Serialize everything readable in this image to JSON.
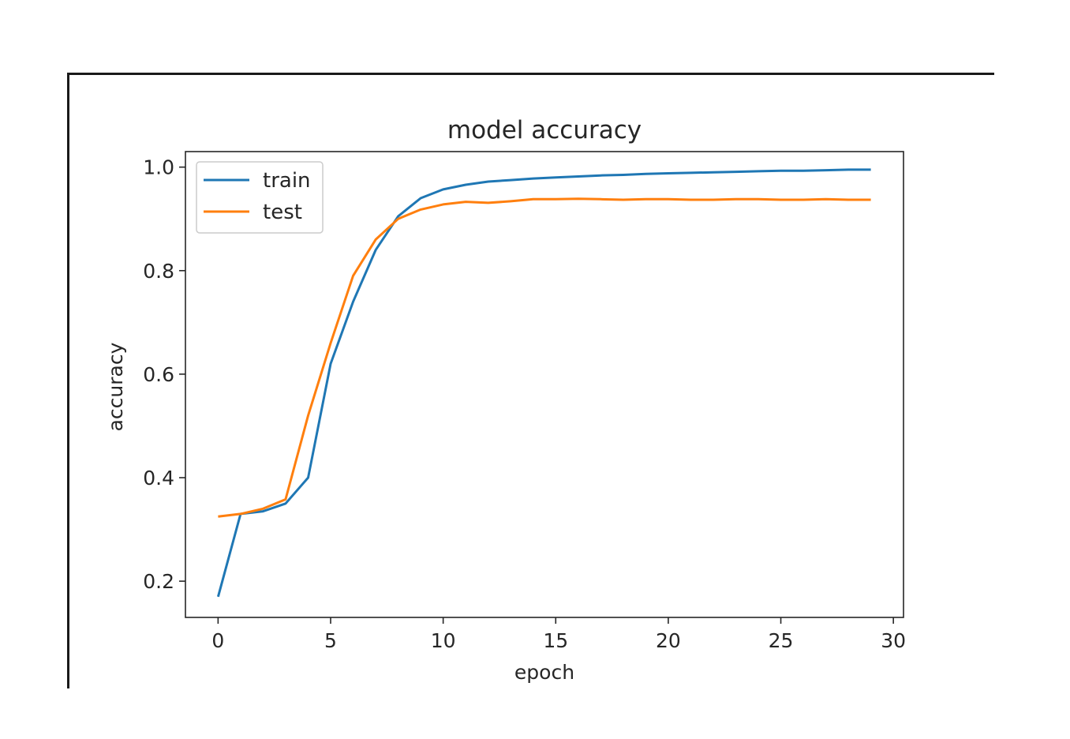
{
  "chart_data": {
    "type": "line",
    "title": "model accuracy",
    "xlabel": "epoch",
    "ylabel": "accuracy",
    "xlim": [
      -1.45,
      30.45
    ],
    "ylim": [
      0.13,
      1.03
    ],
    "xticks": [
      0,
      5,
      10,
      15,
      20,
      25,
      30
    ],
    "yticks": [
      0.2,
      0.4,
      0.6,
      0.8,
      1.0
    ],
    "xtick_labels": [
      "0",
      "5",
      "10",
      "15",
      "20",
      "25",
      "30"
    ],
    "ytick_labels": [
      "0.2",
      "0.4",
      "0.6",
      "0.8",
      "1.0"
    ],
    "legend": "upper-left",
    "grid": false,
    "x": [
      0,
      1,
      2,
      3,
      4,
      5,
      6,
      7,
      8,
      9,
      10,
      11,
      12,
      13,
      14,
      15,
      16,
      17,
      18,
      19,
      20,
      21,
      22,
      23,
      24,
      25,
      26,
      27,
      28,
      29
    ],
    "series": [
      {
        "name": "train",
        "color": "#1f77b4",
        "values": [
          0.17,
          0.33,
          0.335,
          0.35,
          0.4,
          0.62,
          0.74,
          0.84,
          0.905,
          0.94,
          0.957,
          0.966,
          0.972,
          0.975,
          0.978,
          0.98,
          0.982,
          0.984,
          0.985,
          0.987,
          0.988,
          0.989,
          0.99,
          0.991,
          0.992,
          0.993,
          0.993,
          0.994,
          0.995,
          0.995
        ]
      },
      {
        "name": "test",
        "color": "#ff7f0e",
        "values": [
          0.325,
          0.33,
          0.34,
          0.358,
          0.52,
          0.66,
          0.79,
          0.86,
          0.9,
          0.918,
          0.928,
          0.933,
          0.931,
          0.934,
          0.938,
          0.938,
          0.939,
          0.938,
          0.937,
          0.938,
          0.938,
          0.937,
          0.937,
          0.938,
          0.938,
          0.937,
          0.937,
          0.938,
          0.937,
          0.937
        ]
      }
    ]
  }
}
